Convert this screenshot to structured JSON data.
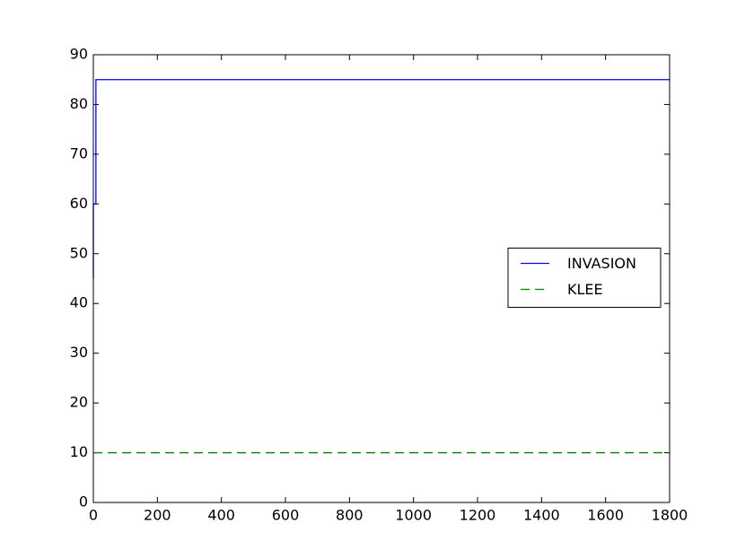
{
  "chart_data": {
    "type": "line",
    "series": [
      {
        "name": "INVASION",
        "color": "#0000ff",
        "linestyle": "solid",
        "x": [
          0,
          0,
          8,
          8,
          1800
        ],
        "values": [
          45,
          60,
          60,
          85,
          85
        ]
      },
      {
        "name": "KLEE",
        "color": "#008000",
        "linestyle": "dashed",
        "x": [
          0,
          1800
        ],
        "values": [
          10,
          10
        ]
      }
    ],
    "xlim": [
      0,
      1800
    ],
    "xticks": [
      0,
      200,
      400,
      600,
      800,
      1000,
      1200,
      1400,
      1600,
      1800
    ],
    "ylim": [
      0,
      90
    ],
    "yticks": [
      0,
      10,
      20,
      30,
      40,
      50,
      60,
      70,
      80,
      90
    ],
    "legend": "center right"
  }
}
